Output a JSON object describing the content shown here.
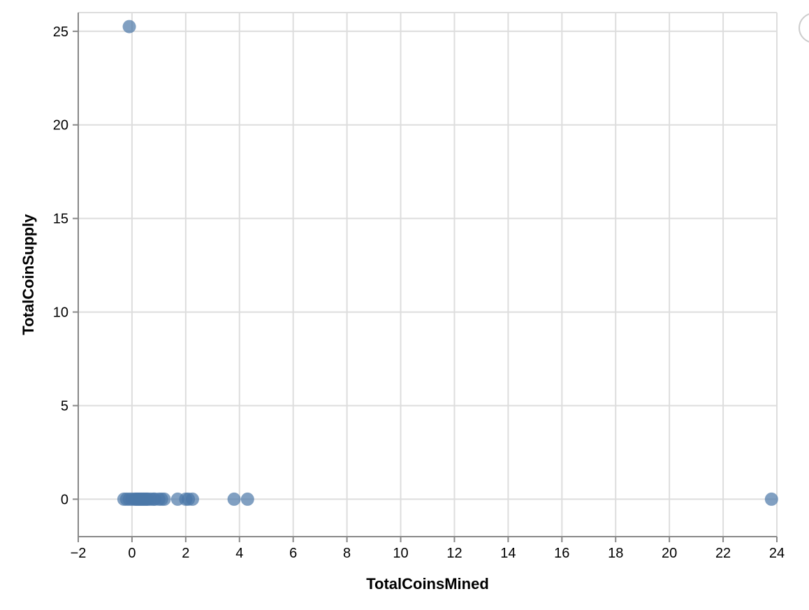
{
  "chart_data": {
    "type": "scatter",
    "xlabel": "TotalCoinsMined",
    "ylabel": "TotalCoinSupply",
    "xlim": [
      -2,
      24
    ],
    "ylim": [
      -2,
      26
    ],
    "x_ticks": [
      -2,
      0,
      2,
      4,
      6,
      8,
      10,
      12,
      14,
      16,
      18,
      20,
      22,
      24
    ],
    "y_ticks": [
      0,
      5,
      10,
      15,
      20,
      25
    ],
    "grid": true,
    "point_color": "#4c78a8",
    "points": [
      {
        "x": -0.1,
        "y": 25.25
      },
      {
        "x": -0.3,
        "y": 0
      },
      {
        "x": -0.2,
        "y": 0
      },
      {
        "x": -0.1,
        "y": 0
      },
      {
        "x": 0.0,
        "y": 0
      },
      {
        "x": 0.1,
        "y": 0
      },
      {
        "x": 0.15,
        "y": 0
      },
      {
        "x": 0.2,
        "y": 0
      },
      {
        "x": 0.25,
        "y": 0
      },
      {
        "x": 0.3,
        "y": 0
      },
      {
        "x": 0.35,
        "y": 0
      },
      {
        "x": 0.4,
        "y": 0
      },
      {
        "x": 0.45,
        "y": 0
      },
      {
        "x": 0.5,
        "y": 0
      },
      {
        "x": 0.55,
        "y": 0
      },
      {
        "x": 0.6,
        "y": 0
      },
      {
        "x": 0.7,
        "y": 0
      },
      {
        "x": 0.8,
        "y": 0
      },
      {
        "x": 0.85,
        "y": 0
      },
      {
        "x": 1.0,
        "y": 0
      },
      {
        "x": 1.1,
        "y": 0
      },
      {
        "x": 1.2,
        "y": 0
      },
      {
        "x": 1.7,
        "y": 0
      },
      {
        "x": 2.0,
        "y": 0
      },
      {
        "x": 2.1,
        "y": 0
      },
      {
        "x": 2.25,
        "y": 0
      },
      {
        "x": 3.8,
        "y": 0
      },
      {
        "x": 4.3,
        "y": 0
      },
      {
        "x": 23.8,
        "y": 0
      }
    ]
  }
}
